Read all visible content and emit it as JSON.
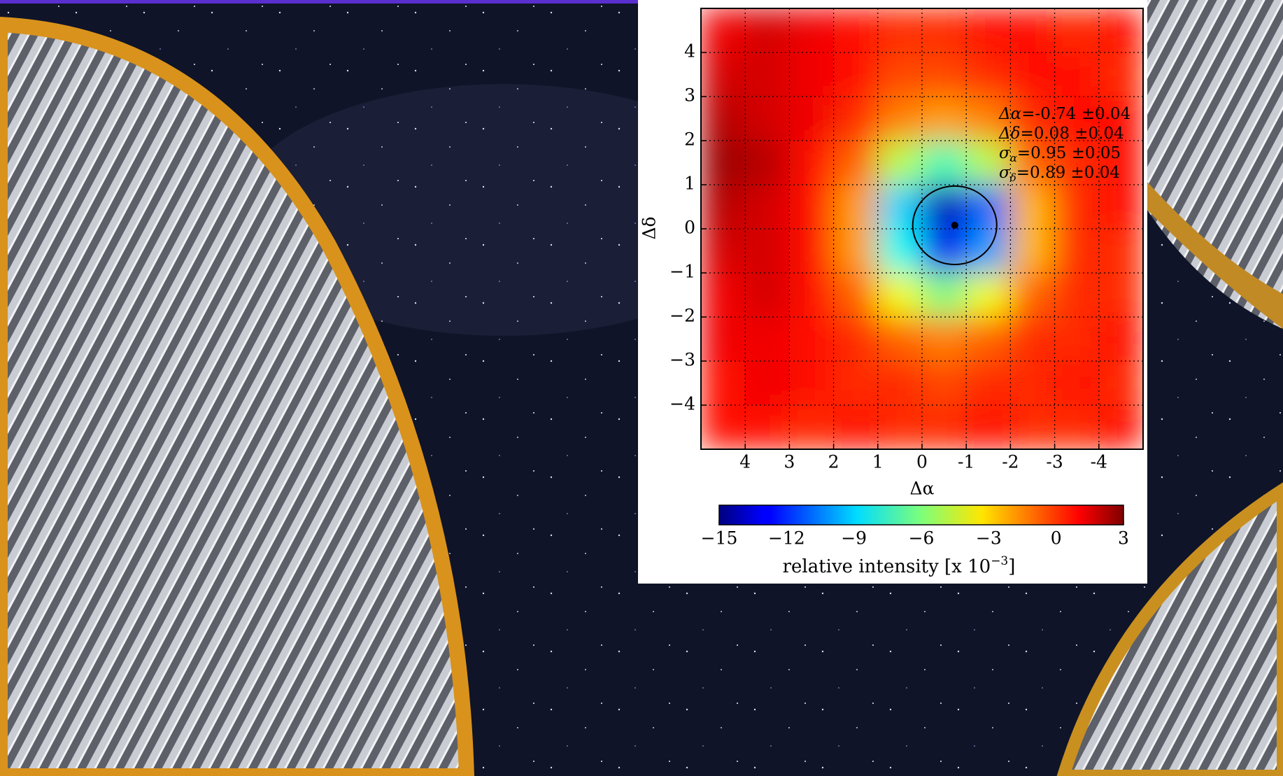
{
  "chart_data": {
    "type": "heatmap",
    "xlabel": "Δα",
    "ylabel": "Δδ",
    "xlim": [
      5,
      -5
    ],
    "ylim": [
      -5,
      5
    ],
    "xticks": [
      4,
      3,
      2,
      1,
      0,
      -1,
      -2,
      -3,
      -4
    ],
    "yticks": [
      {
        "value": -4,
        "label": "−4"
      },
      {
        "value": -3,
        "label": "−3"
      },
      {
        "value": -2,
        "label": "−2"
      },
      {
        "value": -1,
        "label": "−1"
      },
      0,
      1,
      2,
      3,
      4
    ],
    "grid": true,
    "x": [
      4.5,
      3.5,
      2.5,
      1.5,
      0.5,
      -0.5,
      -1.5,
      -2.5,
      -3.5,
      -4.5
    ],
    "y": [
      4.5,
      3.5,
      2.5,
      1.5,
      0.5,
      -0.5,
      -1.5,
      -2.5,
      -3.5,
      -4.5
    ],
    "z": [
      [
        1,
        1.5,
        1,
        0.5,
        0,
        0,
        0.5,
        0.5,
        0,
        0.5
      ],
      [
        1.5,
        1.5,
        1,
        0.5,
        -0.5,
        -0.5,
        0,
        0.5,
        0.5,
        0
      ],
      [
        2,
        1.5,
        1,
        0,
        -1.5,
        -2,
        -1.5,
        0,
        0.5,
        0.5
      ],
      [
        2.5,
        2,
        0.5,
        -1,
        -5,
        -7,
        -5,
        -1,
        0,
        0.5
      ],
      [
        2,
        1.5,
        0.5,
        -2,
        -9,
        -14,
        -11,
        -2.5,
        0,
        0.5
      ],
      [
        1.5,
        1.5,
        0.5,
        -2,
        -8,
        -13,
        -10,
        -2.5,
        0,
        0
      ],
      [
        1,
        1.5,
        0.5,
        -1,
        -4,
        -6,
        -4,
        -1,
        0,
        0
      ],
      [
        1,
        1,
        0.5,
        0,
        -1,
        -1.5,
        -1,
        0,
        0,
        0.5
      ],
      [
        0.5,
        1,
        0.5,
        0,
        0,
        -0.5,
        0,
        0,
        0.5,
        0
      ],
      [
        0.5,
        0.5,
        0,
        0.5,
        0,
        0,
        0.5,
        0,
        0,
        0.5
      ]
    ],
    "colormap": "jet",
    "clim": [
      -15,
      3
    ],
    "colorbar_ticks": [
      {
        "value": -15,
        "label": "−15"
      },
      {
        "value": -12,
        "label": "−12"
      },
      {
        "value": -9,
        "label": "−9"
      },
      {
        "value": -6,
        "label": "−6"
      },
      {
        "value": -3,
        "label": "−3"
      },
      0,
      3
    ],
    "colorbar_label": {
      "text": "relative intensity [x 10",
      "sup": "−3",
      "end": "]"
    },
    "fit": {
      "x": -0.74,
      "y": 0.08,
      "sx": 0.95,
      "sy": 0.89
    },
    "annotations": [
      {
        "symbol": "Δα",
        "text": "=-0.74 ±0.04"
      },
      {
        "symbol": "Δδ",
        "text": "=0.08 ±0.04"
      },
      {
        "symbol": "σ",
        "sub": "α",
        "text": "=0.95 ±0.05"
      },
      {
        "symbol": "σ",
        "sub": "δ",
        "text": "=0.89 ±0.04"
      }
    ]
  }
}
